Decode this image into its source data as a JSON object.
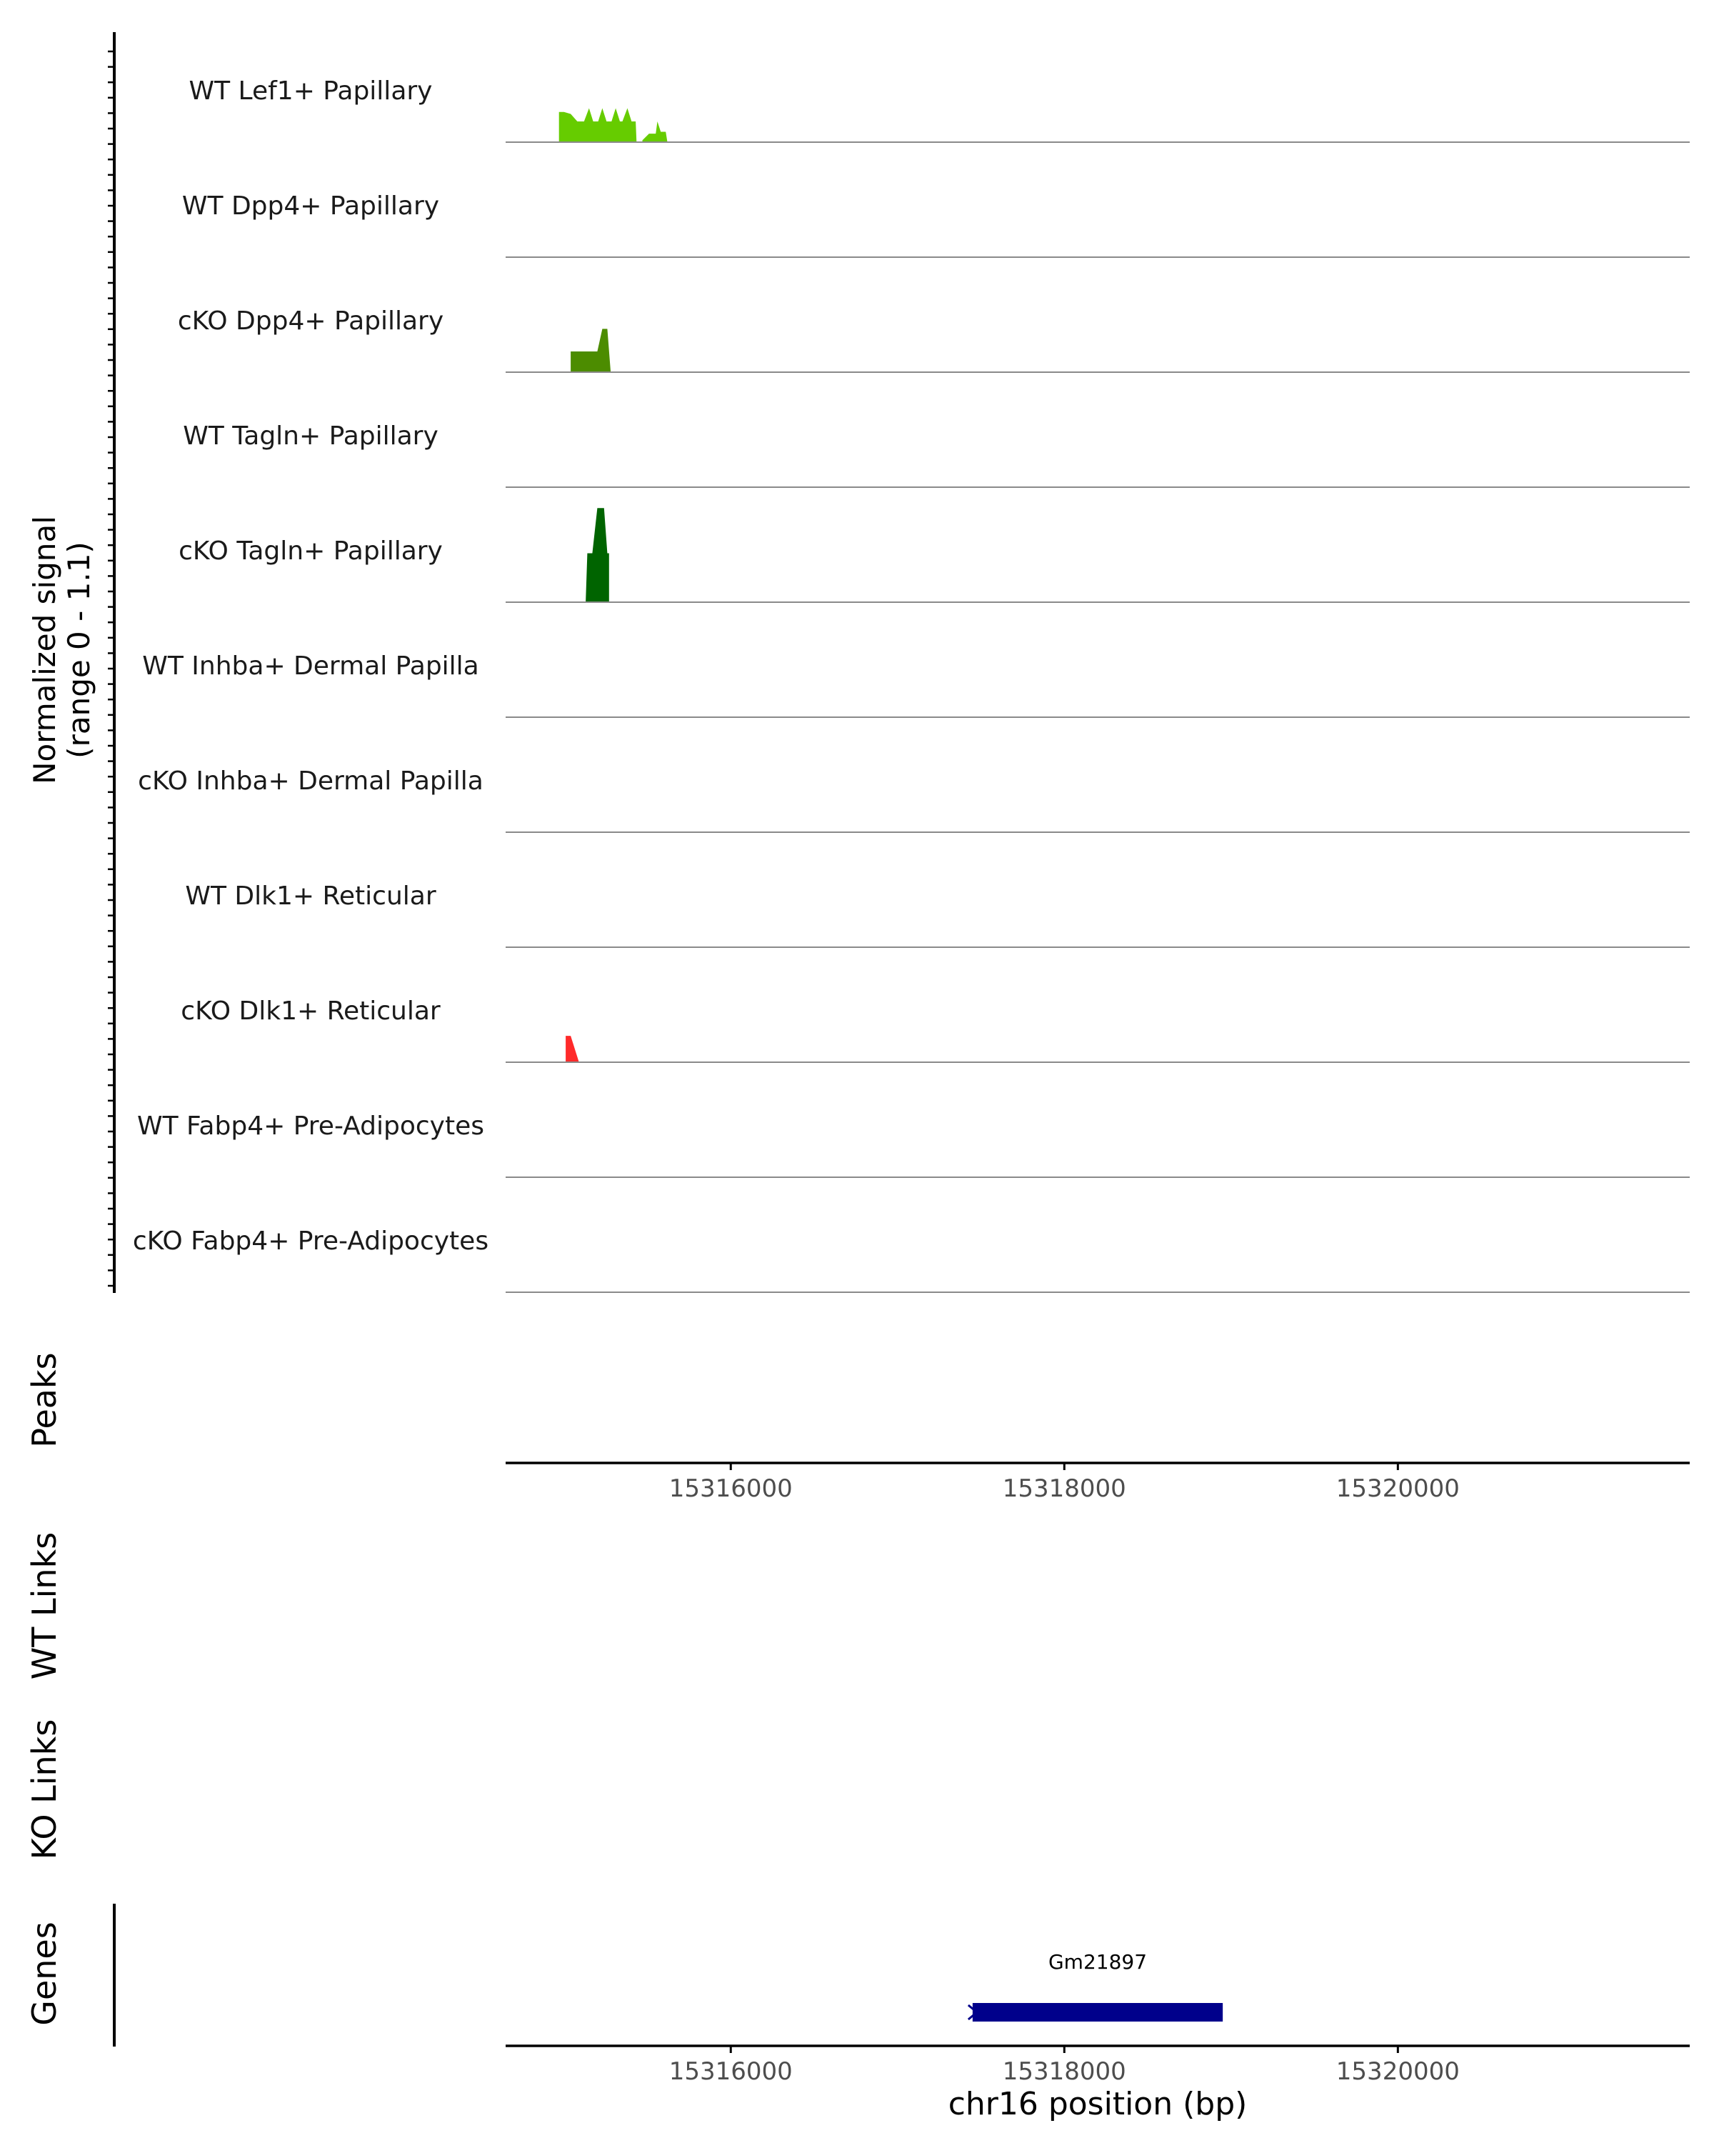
{
  "chart_data": {
    "type": "area",
    "title": "",
    "xlabel": "chr16 position (bp)",
    "xlim": [
      15314650,
      15321750
    ],
    "xticks": [
      15316000,
      15318000,
      15320000
    ],
    "xtick_labels": [
      "15316000",
      "15318000",
      "15320000"
    ],
    "signal_ylabel": [
      "Normalized signal",
      "(range 0 - 1.1)"
    ],
    "ylim": [
      0,
      1.1
    ],
    "tracks": [
      {
        "name": "WT Lef1+ Papillary",
        "color": "#66cc00",
        "points": [
          [
            15314970,
            0
          ],
          [
            15314970,
            0.32
          ],
          [
            15315000,
            0.32
          ],
          [
            15315040,
            0.3
          ],
          [
            15315080,
            0.22
          ],
          [
            15315120,
            0.22
          ],
          [
            15315150,
            0.36
          ],
          [
            15315175,
            0.22
          ],
          [
            15315205,
            0.22
          ],
          [
            15315230,
            0.36
          ],
          [
            15315255,
            0.22
          ],
          [
            15315285,
            0.22
          ],
          [
            15315310,
            0.36
          ],
          [
            15315335,
            0.22
          ],
          [
            15315350,
            0.22
          ],
          [
            15315380,
            0.36
          ],
          [
            15315405,
            0.22
          ],
          [
            15315430,
            0.22
          ],
          [
            15315435,
            0
          ],
          [
            15315470,
            0
          ],
          [
            15315470,
            0.02
          ],
          [
            15315510,
            0.09
          ],
          [
            15315550,
            0.09
          ],
          [
            15315560,
            0.22
          ],
          [
            15315580,
            0.11
          ],
          [
            15315610,
            0.11
          ],
          [
            15315620,
            0
          ]
        ]
      },
      {
        "name": "WT Dpp4+ Papillary",
        "color": "#66cc00",
        "points": []
      },
      {
        "name": "cKO Dpp4+ Papillary",
        "color": "#4c8c00",
        "points": [
          [
            15315040,
            0
          ],
          [
            15315040,
            0.22
          ],
          [
            15315200,
            0.22
          ],
          [
            15315230,
            0.46
          ],
          [
            15315260,
            0.46
          ],
          [
            15315280,
            0
          ]
        ]
      },
      {
        "name": "WT Tagln+ Papillary",
        "color": "#006400",
        "points": []
      },
      {
        "name": "cKO Tagln+ Papillary",
        "color": "#006400",
        "points": [
          [
            15315130,
            0
          ],
          [
            15315140,
            0.52
          ],
          [
            15315170,
            0.52
          ],
          [
            15315200,
            1.0
          ],
          [
            15315240,
            1.0
          ],
          [
            15315260,
            0.52
          ],
          [
            15315270,
            0.52
          ],
          [
            15315270,
            0
          ]
        ]
      },
      {
        "name": "WT Inhba+ Dermal Papilla",
        "color": "#ff2a2a",
        "points": []
      },
      {
        "name": "cKO Inhba+ Dermal Papilla",
        "color": "#ff2a2a",
        "points": []
      },
      {
        "name": "WT Dlk1+ Reticular",
        "color": "#ff2a2a",
        "points": []
      },
      {
        "name": "cKO Dlk1+ Reticular",
        "color": "#ff2a2a",
        "points": [
          [
            15315010,
            0
          ],
          [
            15315010,
            0.28
          ],
          [
            15315040,
            0.28
          ],
          [
            15315090,
            0
          ]
        ]
      },
      {
        "name": "WT Fabp4+ Pre-Adipocytes",
        "color": "#cc6600",
        "points": []
      },
      {
        "name": "cKO Fabp4+ Pre-Adipocytes",
        "color": "#cc6600",
        "points": []
      }
    ],
    "panels": [
      "Peaks",
      "WT Links",
      "KO Links",
      "Genes"
    ],
    "genes": [
      {
        "name": "Gm21897",
        "start": 15317450,
        "end": 15318950,
        "strand": "-",
        "color": "#00008b"
      }
    ]
  }
}
